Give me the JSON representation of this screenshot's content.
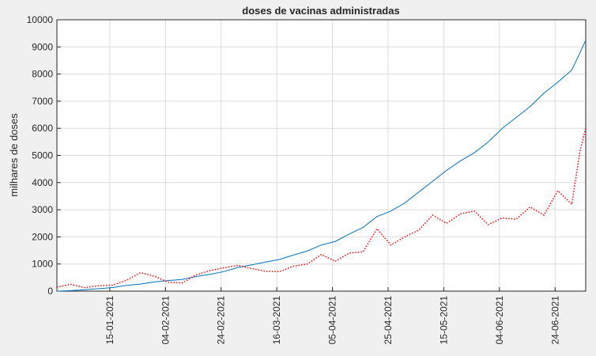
{
  "chart_data": {
    "type": "line",
    "title": "doses de vacinas administradas",
    "y_label": "milhares de doses",
    "x": [
      "2020-12-27",
      "2021-01-01",
      "2021-01-06",
      "2021-01-11",
      "2021-01-16",
      "2021-01-21",
      "2021-01-26",
      "2021-01-31",
      "2021-02-05",
      "2021-02-10",
      "2021-02-15",
      "2021-02-20",
      "2021-02-25",
      "2021-03-02",
      "2021-03-07",
      "2021-03-12",
      "2021-03-17",
      "2021-03-22",
      "2021-03-27",
      "2021-04-01",
      "2021-04-06",
      "2021-04-11",
      "2021-04-16",
      "2021-04-21",
      "2021-04-26",
      "2021-05-01",
      "2021-05-06",
      "2021-05-11",
      "2021-05-16",
      "2021-05-21",
      "2021-05-26",
      "2021-05-31",
      "2021-06-05",
      "2021-06-10",
      "2021-06-15",
      "2021-06-20",
      "2021-06-25",
      "2021-06-30",
      "2021-07-03",
      "2021-07-05"
    ],
    "series": [
      {
        "color": "#0072bd",
        "dash": "solid",
        "values": [
          0,
          20,
          50,
          90,
          130,
          210,
          260,
          340,
          390,
          430,
          540,
          620,
          720,
          870,
          970,
          1070,
          1170,
          1330,
          1480,
          1700,
          1830,
          2100,
          2350,
          2750,
          2950,
          3250,
          3650,
          4050,
          4450,
          4800,
          5100,
          5500,
          6000,
          6400,
          6800,
          7300,
          7700,
          8150,
          8800,
          9250
        ]
      },
      {
        "color": "#ff0000",
        "dash": "dotted",
        "values": [
          150,
          250,
          130,
          200,
          220,
          400,
          680,
          550,
          330,
          300,
          600,
          760,
          860,
          950,
          830,
          730,
          720,
          920,
          1000,
          1350,
          1100,
          1400,
          1450,
          2300,
          1700,
          2000,
          2250,
          2800,
          2500,
          2850,
          2950,
          2450,
          2700,
          2650,
          3100,
          2800,
          3700,
          3200,
          5200,
          6000
        ]
      }
    ],
    "xlim": [
      "2020-12-27",
      "2021-07-05"
    ],
    "xticks": [
      {
        "value": "2021-01-15",
        "label": "15-01-2021"
      },
      {
        "value": "2021-02-04",
        "label": "04-02-2021"
      },
      {
        "value": "2021-02-24",
        "label": "24-02-2021"
      },
      {
        "value": "2021-03-16",
        "label": "16-03-2021"
      },
      {
        "value": "2021-04-05",
        "label": "05-04-2021"
      },
      {
        "value": "2021-04-25",
        "label": "25-04-2021"
      },
      {
        "value": "2021-05-15",
        "label": "15-05-2021"
      },
      {
        "value": "2021-06-04",
        "label": "04-06-2021"
      },
      {
        "value": "2021-06-24",
        "label": "24-06-2021"
      }
    ],
    "ylim": [
      0,
      10000
    ],
    "yticks": [
      0,
      1000,
      2000,
      3000,
      4000,
      5000,
      6000,
      7000,
      8000,
      9000,
      10000
    ],
    "grid": true
  }
}
